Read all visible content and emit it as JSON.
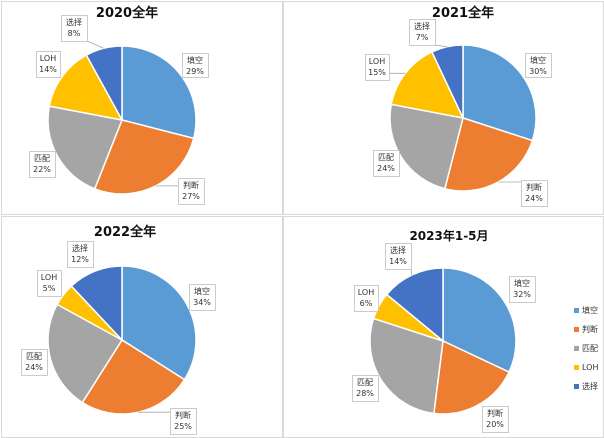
{
  "colors": {
    "填空": "#5b9bd5",
    "判断": "#ed7d31",
    "匹配": "#a5a5a5",
    "LOH": "#ffc000",
    "选择": "#4472c4",
    "panel_border": "#d9d9d9",
    "label_border": "#bfbfbf",
    "leader_line": "#a6a6a6"
  },
  "legend": [
    "填空",
    "判断",
    "匹配",
    "LOH",
    "选择"
  ],
  "legend_position": "right",
  "chart_data": [
    {
      "type": "pie",
      "title": "2020全年",
      "categories": [
        "填空",
        "判断",
        "匹配",
        "LOH",
        "选择"
      ],
      "values": [
        29,
        27,
        22,
        14,
        8
      ],
      "value_labels": [
        "29%",
        "27%",
        "22%",
        "14%",
        "8%"
      ]
    },
    {
      "type": "pie",
      "title": "2021全年",
      "categories": [
        "填空",
        "判断",
        "匹配",
        "LOH",
        "选择"
      ],
      "values": [
        30,
        24,
        24,
        15,
        7
      ],
      "value_labels": [
        "30%",
        "24%",
        "24%",
        "15%",
        "7%"
      ]
    },
    {
      "type": "pie",
      "title": "2022全年",
      "categories": [
        "填空",
        "判断",
        "匹配",
        "LOH",
        "选择"
      ],
      "values": [
        34,
        25,
        24,
        5,
        12
      ],
      "value_labels": [
        "34%",
        "25%",
        "24%",
        "5%",
        "12%"
      ]
    },
    {
      "type": "pie",
      "title": "2023年1-5月",
      "categories": [
        "填空",
        "判断",
        "匹配",
        "LOH",
        "选择"
      ],
      "values": [
        32,
        20,
        28,
        6,
        14
      ],
      "value_labels": [
        "32%",
        "20%",
        "28%",
        "6%",
        "14%"
      ]
    }
  ]
}
